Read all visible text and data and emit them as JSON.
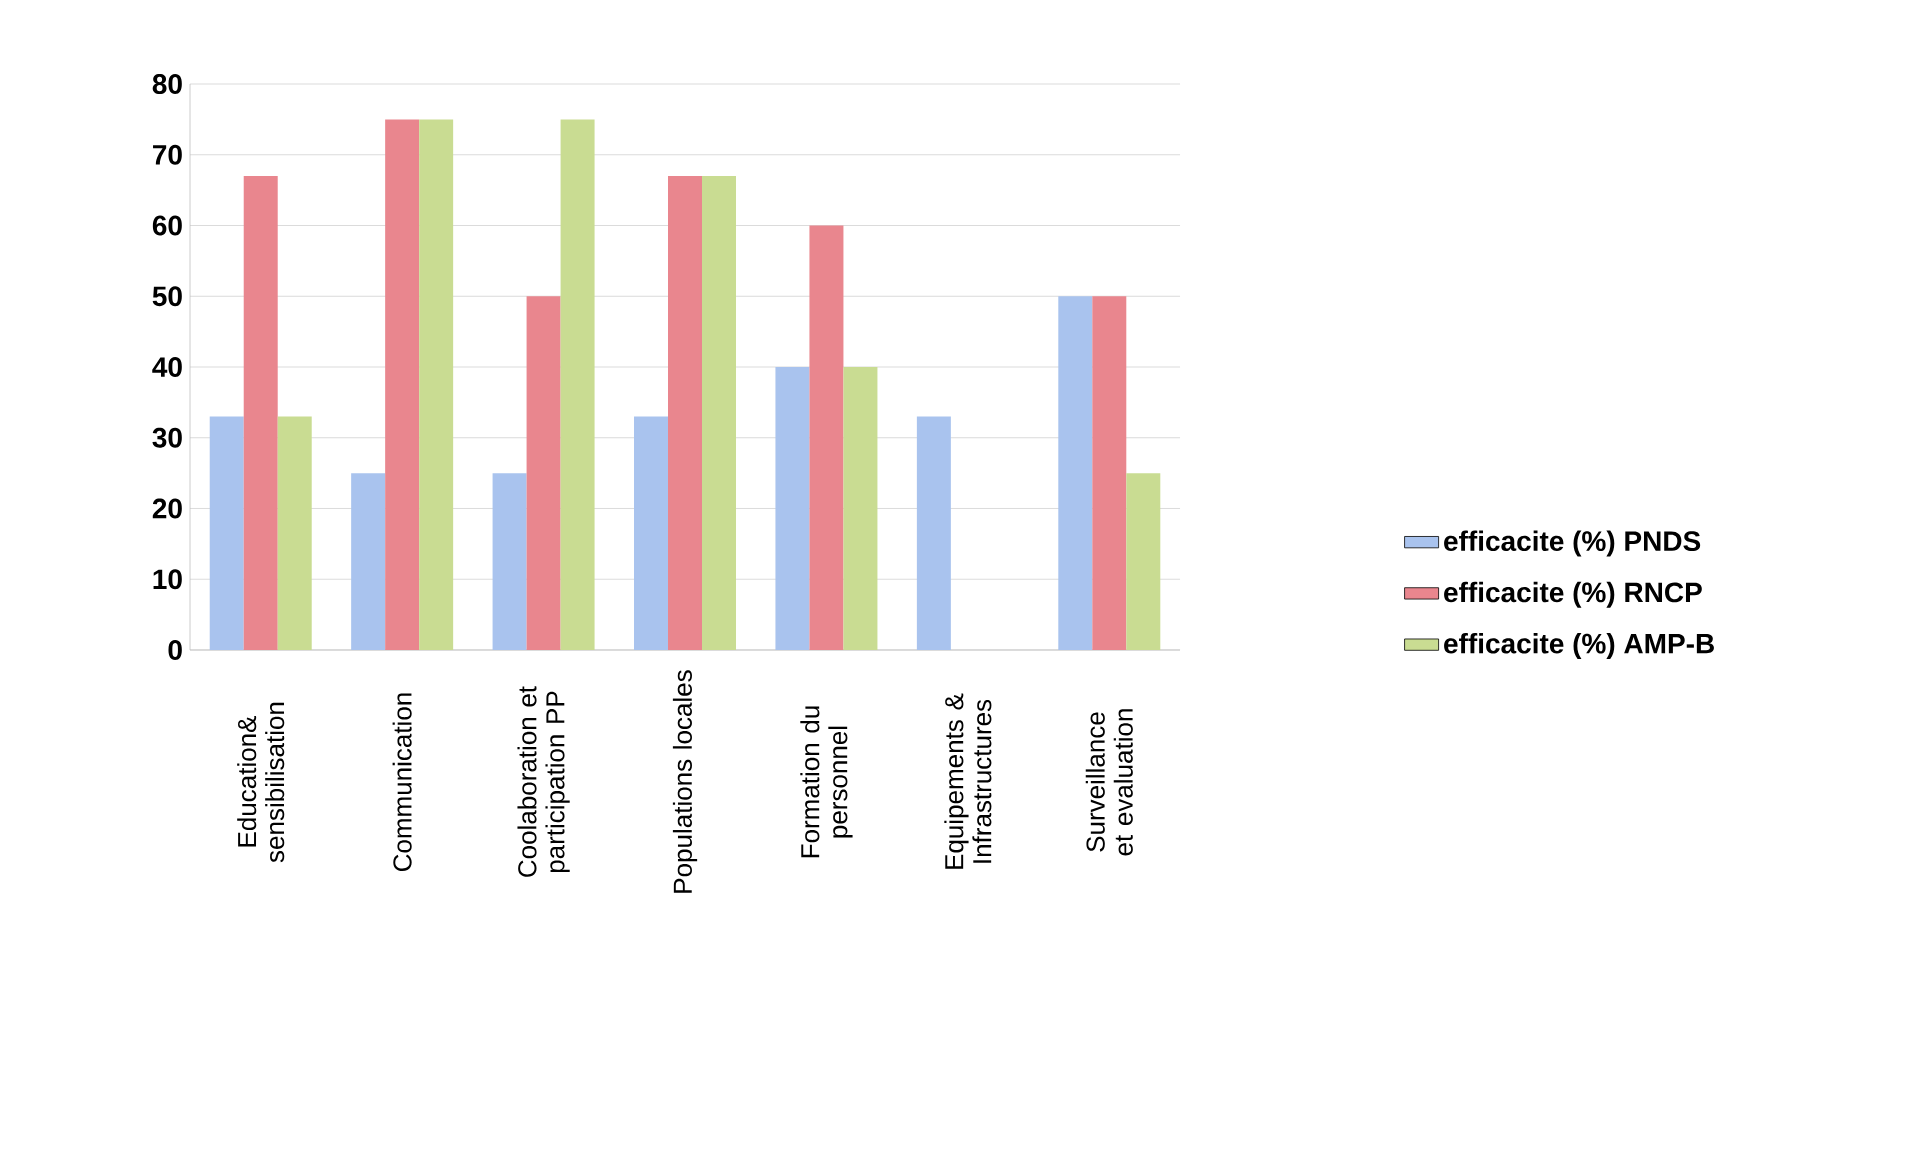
{
  "chart_data": {
    "type": "bar",
    "categories": [
      "Education& sensibilisation",
      "Communication",
      "Coolaboration et participation PP",
      "Populations locales",
      "Formation du personnel",
      "Equipements & Infrastructures",
      "Surveillance et evaluation"
    ],
    "series": [
      {
        "name": "efficacite (%) PNDS",
        "color": "#a9c3ee",
        "values": [
          33,
          25,
          25,
          33,
          40,
          33,
          50
        ]
      },
      {
        "name": "efficacite (%) RNCP",
        "color": "#e9868e",
        "values": [
          67,
          75,
          50,
          67,
          60,
          0,
          50
        ]
      },
      {
        "name": "efficacite (%) AMP-B",
        "color": "#c9dc92",
        "values": [
          33,
          75,
          75,
          67,
          40,
          0,
          25
        ]
      }
    ],
    "ylim": [
      0,
      80
    ],
    "yticks": [
      0,
      10,
      20,
      30,
      40,
      50,
      60,
      70,
      80
    ],
    "grid": "y",
    "legend": "right"
  }
}
